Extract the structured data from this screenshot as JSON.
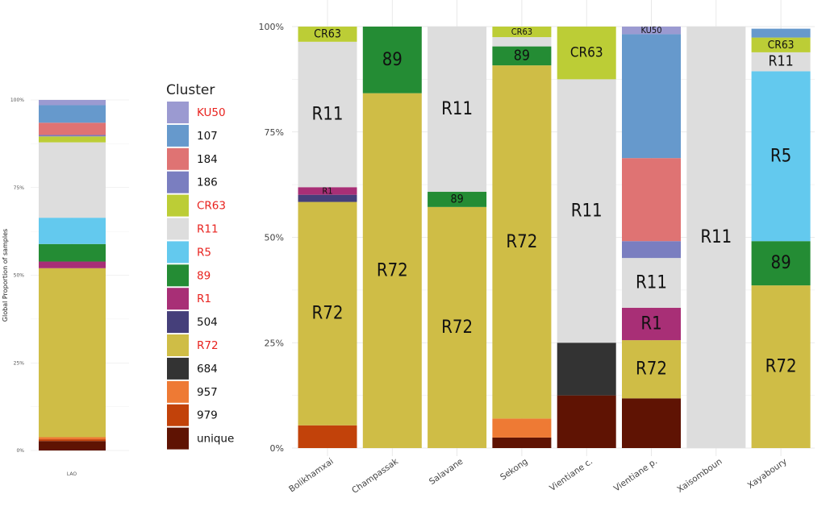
{
  "chart_data": [
    {
      "type": "bar",
      "stacked": true,
      "ylabel": "Global Proportion of samples",
      "ylim": [
        0,
        1
      ],
      "y_ticks": [
        "0%",
        "25%",
        "50%",
        "75%",
        "100%"
      ],
      "categories": [
        "LAO"
      ],
      "grid": true,
      "series": [
        {
          "name": "unique",
          "values": [
            0.027
          ]
        },
        {
          "name": "979",
          "values": [
            0.005
          ]
        },
        {
          "name": "957",
          "values": [
            0.006
          ]
        },
        {
          "name": "684",
          "values": [
            0.0
          ]
        },
        {
          "name": "R72",
          "values": [
            0.482
          ]
        },
        {
          "name": "504",
          "values": [
            0.0
          ]
        },
        {
          "name": "R1",
          "values": [
            0.019
          ]
        },
        {
          "name": "89",
          "values": [
            0.05
          ]
        },
        {
          "name": "R5",
          "values": [
            0.075
          ]
        },
        {
          "name": "R11",
          "values": [
            0.215
          ]
        },
        {
          "name": "CR63",
          "values": [
            0.017
          ]
        },
        {
          "name": "186",
          "values": [
            0.004
          ]
        },
        {
          "name": "184",
          "values": [
            0.035
          ]
        },
        {
          "name": "107",
          "values": [
            0.05
          ]
        },
        {
          "name": "KU50",
          "values": [
            0.015
          ]
        }
      ]
    },
    {
      "type": "bar",
      "stacked": true,
      "ylim": [
        0,
        1
      ],
      "y_ticks": [
        "0%",
        "25%",
        "50%",
        "75%",
        "100%"
      ],
      "categories": [
        "Bolikhamxai",
        "Champassak",
        "Salavane",
        "Sekong",
        "Vientiane c.",
        "Vientiane p.",
        "Xaisomboun",
        "Xayaboury"
      ],
      "grid": true,
      "series": [
        {
          "name": "unique",
          "values": [
            0,
            0,
            0,
            0.025,
            0.125,
            0.118,
            0,
            0
          ]
        },
        {
          "name": "979",
          "values": [
            0.054,
            0,
            0,
            0,
            0,
            0,
            0,
            0
          ]
        },
        {
          "name": "957",
          "values": [
            0,
            0,
            0,
            0.045,
            0,
            0,
            0,
            0
          ]
        },
        {
          "name": "684",
          "values": [
            0,
            0,
            0,
            0,
            0.125,
            0,
            0,
            0
          ]
        },
        {
          "name": "R72",
          "values": [
            0.53,
            0.842,
            0.572,
            0.838,
            0,
            0.138,
            0,
            0.386
          ]
        },
        {
          "name": "504",
          "values": [
            0.017,
            0,
            0,
            0,
            0,
            0,
            0,
            0
          ]
        },
        {
          "name": "R1",
          "values": [
            0.018,
            0,
            0,
            0,
            0,
            0.077,
            0,
            0
          ]
        },
        {
          "name": "89",
          "values": [
            0,
            0.158,
            0.036,
            0.045,
            0,
            0,
            0,
            0.105
          ]
        },
        {
          "name": "R5",
          "values": [
            0,
            0,
            0,
            0,
            0,
            0,
            0,
            0.403
          ]
        },
        {
          "name": "R11",
          "values": [
            0.345,
            0,
            0.392,
            0.022,
            0.625,
            0.118,
            1.0,
            0.045
          ]
        },
        {
          "name": "CR63",
          "values": [
            0.036,
            0,
            0,
            0.025,
            0.125,
            0,
            0,
            0.035
          ]
        },
        {
          "name": "186",
          "values": [
            0,
            0,
            0,
            0,
            0,
            0.04,
            0,
            0
          ]
        },
        {
          "name": "184",
          "values": [
            0,
            0,
            0,
            0,
            0,
            0.197,
            0,
            0
          ]
        },
        {
          "name": "107",
          "values": [
            0,
            0,
            0,
            0,
            0,
            0.294,
            0,
            0.021
          ]
        },
        {
          "name": "KU50",
          "values": [
            0,
            0,
            0,
            0,
            0,
            0.018,
            0,
            0
          ]
        }
      ]
    }
  ],
  "segment_labels": [
    {
      "bar": "Bolikhamxai",
      "series": "CR63",
      "text": "CR63"
    },
    {
      "bar": "Bolikhamxai",
      "series": "R11",
      "text": "R11"
    },
    {
      "bar": "Bolikhamxai",
      "series": "R1",
      "text": "R1"
    },
    {
      "bar": "Bolikhamxai",
      "series": "R72",
      "text": "R72"
    },
    {
      "bar": "Champassak",
      "series": "89",
      "text": "89"
    },
    {
      "bar": "Champassak",
      "series": "R72",
      "text": "R72"
    },
    {
      "bar": "Salavane",
      "series": "R11",
      "text": "R11"
    },
    {
      "bar": "Salavane",
      "series": "89",
      "text": "89"
    },
    {
      "bar": "Salavane",
      "series": "R72",
      "text": "R72"
    },
    {
      "bar": "Sekong",
      "series": "CR63",
      "text": "CR63"
    },
    {
      "bar": "Sekong",
      "series": "89",
      "text": "89"
    },
    {
      "bar": "Sekong",
      "series": "R72",
      "text": "R72"
    },
    {
      "bar": "Vientiane c.",
      "series": "CR63",
      "text": "CR63"
    },
    {
      "bar": "Vientiane c.",
      "series": "R11",
      "text": "R11"
    },
    {
      "bar": "Vientiane p.",
      "series": "KU50",
      "text": "KU50"
    },
    {
      "bar": "Vientiane p.",
      "series": "R11",
      "text": "R11"
    },
    {
      "bar": "Vientiane p.",
      "series": "R1",
      "text": "R1"
    },
    {
      "bar": "Vientiane p.",
      "series": "R72",
      "text": "R72"
    },
    {
      "bar": "Xaisomboun",
      "series": "R11",
      "text": "R11"
    },
    {
      "bar": "Xayaboury",
      "series": "CR63",
      "text": "CR63"
    },
    {
      "bar": "Xayaboury",
      "series": "R11",
      "text": "R11"
    },
    {
      "bar": "Xayaboury",
      "series": "R5",
      "text": "R5"
    },
    {
      "bar": "Xayaboury",
      "series": "89",
      "text": "89"
    },
    {
      "bar": "Xayaboury",
      "series": "R72",
      "text": "R72"
    }
  ],
  "legend": {
    "title": "Cluster",
    "items": [
      {
        "label": "KU50",
        "color": "#9b9ad1",
        "label_color": "#e8231f"
      },
      {
        "label": "107",
        "color": "#6699cc",
        "label_color": "#111111"
      },
      {
        "label": "184",
        "color": "#df7373",
        "label_color": "#111111"
      },
      {
        "label": "186",
        "color": "#7a7ec0",
        "label_color": "#111111"
      },
      {
        "label": "CR63",
        "color": "#bccd36",
        "label_color": "#e8231f"
      },
      {
        "label": "R11",
        "color": "#dddddd",
        "label_color": "#e8231f"
      },
      {
        "label": "R5",
        "color": "#63c9ee",
        "label_color": "#e8231f"
      },
      {
        "label": "89",
        "color": "#248c34",
        "label_color": "#e8231f"
      },
      {
        "label": "R1",
        "color": "#a82f76",
        "label_color": "#e8231f"
      },
      {
        "label": "504",
        "color": "#453f7a",
        "label_color": "#111111"
      },
      {
        "label": "R72",
        "color": "#cfbd46",
        "label_color": "#e8231f"
      },
      {
        "label": "684",
        "color": "#333333",
        "label_color": "#111111"
      },
      {
        "label": "957",
        "color": "#ee7a34",
        "label_color": "#111111"
      },
      {
        "label": "979",
        "color": "#c2420a",
        "label_color": "#111111"
      },
      {
        "label": "unique",
        "color": "#5f1303",
        "label_color": "#111111"
      }
    ]
  }
}
